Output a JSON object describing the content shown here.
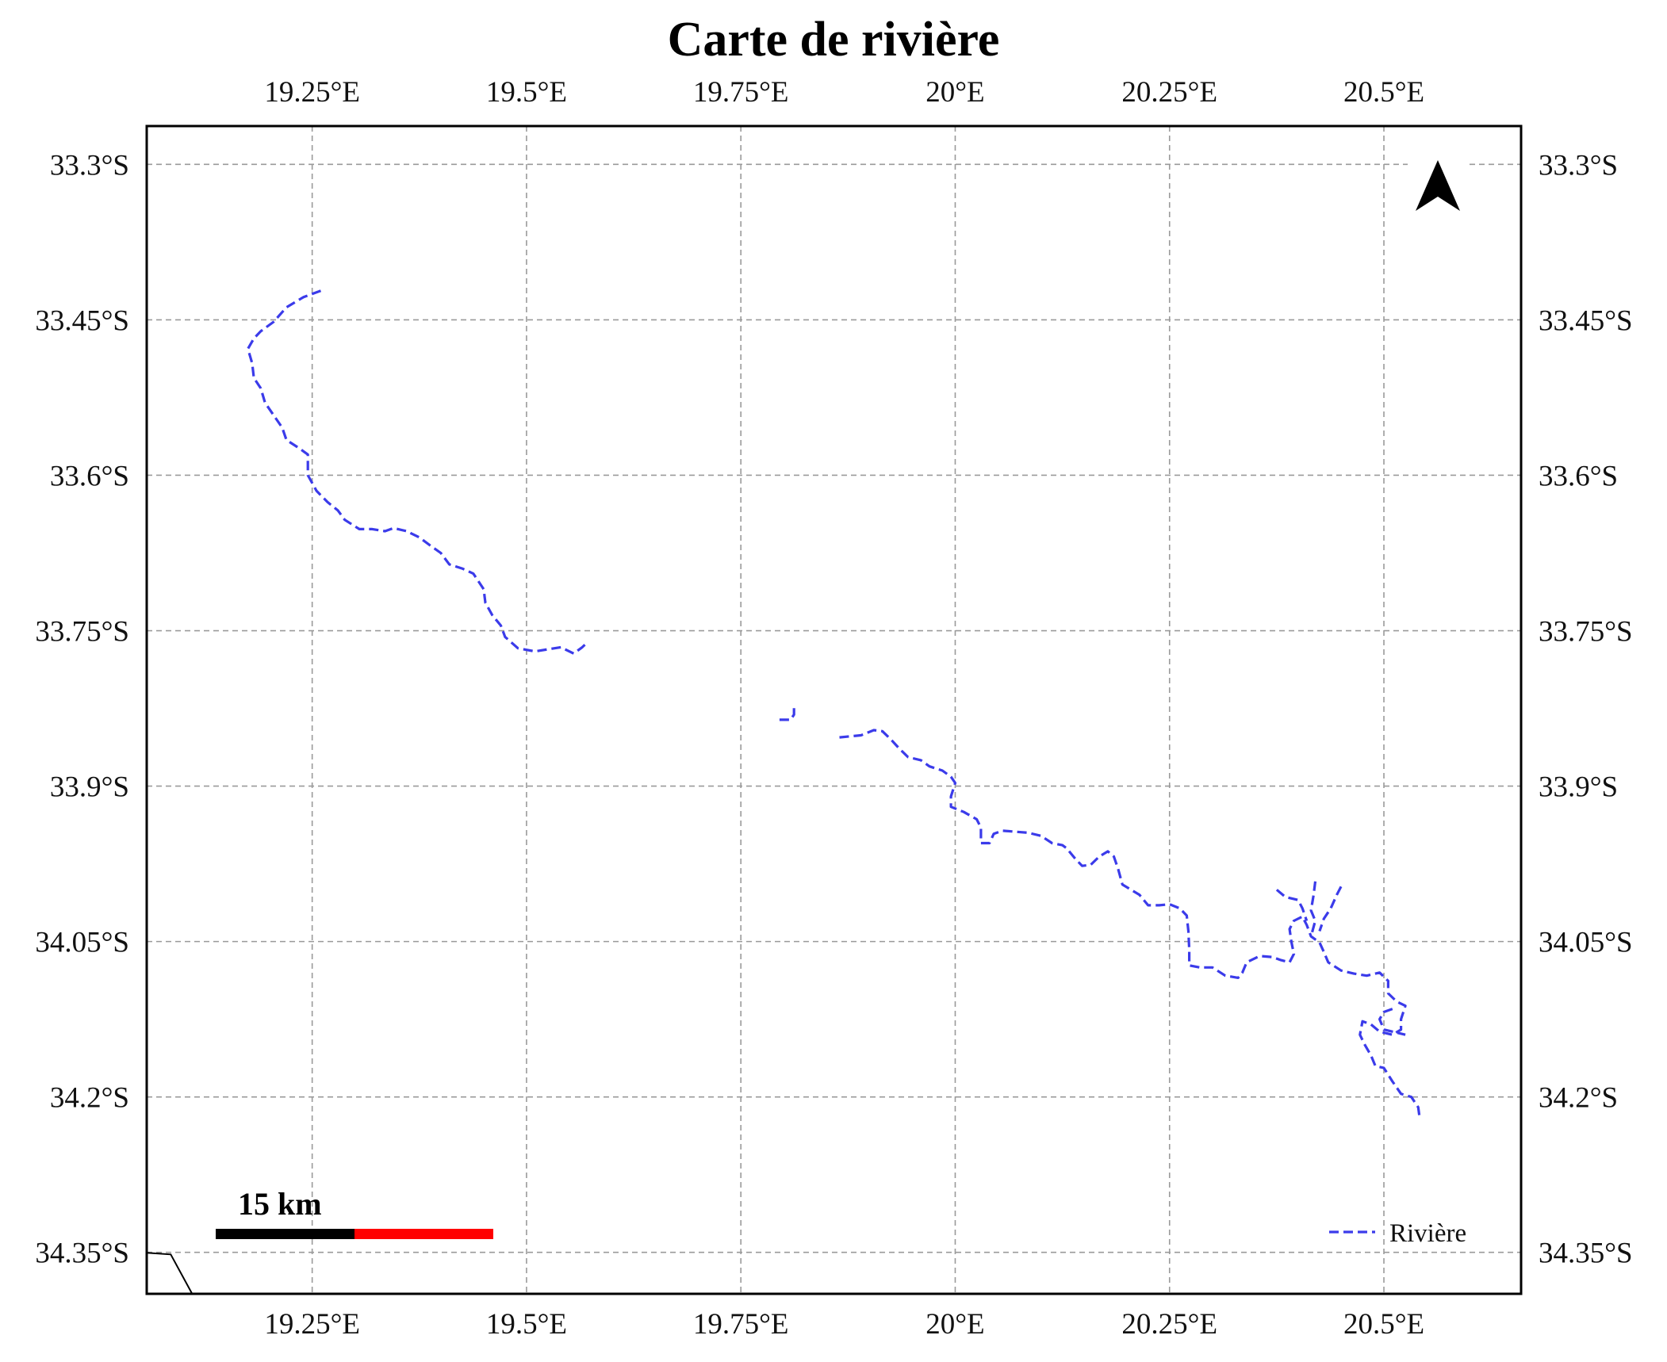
{
  "map": {
    "title": "Carte de rivière",
    "x_ticks": [
      "19.25°E",
      "19.5°E",
      "19.75°E",
      "20°E",
      "20.25°E",
      "20.5°E"
    ],
    "x_tick_values": [
      19.25,
      19.5,
      19.75,
      20.0,
      20.25,
      20.5
    ],
    "y_ticks": [
      "33.3°S",
      "33.45°S",
      "33.6°S",
      "33.75°S",
      "33.9°S",
      "34.05°S",
      "34.2°S",
      "34.35°S"
    ],
    "y_tick_values": [
      -33.3,
      -33.45,
      -33.6,
      -33.75,
      -33.9,
      -34.05,
      -34.2,
      -34.35
    ],
    "extent": {
      "lon": [
        19.057,
        20.66
      ],
      "lat": [
        -34.39,
        -33.263
      ]
    },
    "scale_bar": {
      "label": "15 km",
      "colors": [
        "#000000",
        "#ff0000"
      ]
    },
    "legend": {
      "entries": [
        {
          "label": "Rivière",
          "color": "#3b3bea",
          "style": "dashed"
        }
      ],
      "placement": "lower-right"
    },
    "north_arrow": {
      "icon": "north-arrow-icon"
    },
    "rivers": [
      {
        "name": "upper-segment",
        "coords": [
          [
            19.26,
            -33.422
          ],
          [
            19.24,
            -33.428
          ],
          [
            19.22,
            -33.438
          ],
          [
            19.205,
            -33.452
          ],
          [
            19.19,
            -33.461
          ],
          [
            19.182,
            -33.468
          ],
          [
            19.175,
            -33.478
          ],
          [
            19.18,
            -33.492
          ],
          [
            19.182,
            -33.506
          ],
          [
            19.19,
            -33.516
          ],
          [
            19.195,
            -33.53
          ],
          [
            19.205,
            -33.542
          ],
          [
            19.215,
            -33.554
          ],
          [
            19.22,
            -33.566
          ],
          [
            19.235,
            -33.574
          ],
          [
            19.245,
            -33.58
          ],
          [
            19.245,
            -33.6
          ],
          [
            19.255,
            -33.615
          ],
          [
            19.268,
            -33.626
          ],
          [
            19.28,
            -33.634
          ],
          [
            19.288,
            -33.643
          ],
          [
            19.305,
            -33.652
          ],
          [
            19.32,
            -33.652
          ],
          [
            19.335,
            -33.654
          ],
          [
            19.345,
            -33.651
          ],
          [
            19.36,
            -33.654
          ],
          [
            19.375,
            -33.66
          ],
          [
            19.388,
            -33.668
          ],
          [
            19.4,
            -33.675
          ],
          [
            19.41,
            -33.686
          ],
          [
            19.425,
            -33.69
          ],
          [
            19.438,
            -33.695
          ],
          [
            19.45,
            -33.71
          ],
          [
            19.452,
            -33.723
          ],
          [
            19.46,
            -33.735
          ],
          [
            19.47,
            -33.745
          ],
          [
            19.475,
            -33.756
          ],
          [
            19.49,
            -33.767
          ],
          [
            19.51,
            -33.77
          ],
          [
            19.525,
            -33.768
          ],
          [
            19.54,
            -33.766
          ],
          [
            19.555,
            -33.772
          ],
          [
            19.565,
            -33.766
          ],
          [
            19.57,
            -33.762
          ]
        ]
      },
      {
        "name": "short-fragment",
        "coords": [
          [
            19.795,
            -33.836
          ],
          [
            19.808,
            -33.836
          ],
          [
            19.812,
            -33.831
          ],
          [
            19.812,
            -33.824
          ]
        ]
      },
      {
        "name": "lower-main",
        "coords": [
          [
            19.865,
            -33.853
          ],
          [
            19.89,
            -33.851
          ],
          [
            19.905,
            -33.846
          ],
          [
            19.915,
            -33.847
          ],
          [
            19.925,
            -33.855
          ],
          [
            19.935,
            -33.864
          ],
          [
            19.945,
            -33.872
          ],
          [
            19.96,
            -33.875
          ],
          [
            19.97,
            -33.881
          ],
          [
            19.985,
            -33.885
          ],
          [
            19.995,
            -33.891
          ],
          [
            20.0,
            -33.897
          ],
          [
            19.995,
            -33.91
          ],
          [
            19.995,
            -33.92
          ],
          [
            20.01,
            -33.925
          ],
          [
            20.025,
            -33.932
          ],
          [
            20.03,
            -33.94
          ],
          [
            20.03,
            -33.955
          ],
          [
            20.04,
            -33.955
          ],
          [
            20.045,
            -33.946
          ],
          [
            20.055,
            -33.943
          ],
          [
            20.07,
            -33.944
          ],
          [
            20.085,
            -33.945
          ],
          [
            20.1,
            -33.948
          ],
          [
            20.113,
            -33.955
          ],
          [
            20.125,
            -33.957
          ],
          [
            20.13,
            -33.96
          ],
          [
            20.14,
            -33.97
          ],
          [
            20.148,
            -33.977
          ],
          [
            20.158,
            -33.976
          ],
          [
            20.168,
            -33.968
          ],
          [
            20.178,
            -33.963
          ],
          [
            20.185,
            -33.968
          ],
          [
            20.19,
            -33.98
          ],
          [
            20.195,
            -33.995
          ],
          [
            20.205,
            -34.0
          ],
          [
            20.215,
            -34.005
          ],
          [
            20.225,
            -34.015
          ],
          [
            20.238,
            -34.015
          ],
          [
            20.25,
            -34.014
          ],
          [
            20.262,
            -34.018
          ],
          [
            20.27,
            -34.025
          ],
          [
            20.272,
            -34.04
          ],
          [
            20.273,
            -34.058
          ],
          [
            20.273,
            -34.073
          ],
          [
            20.285,
            -34.075
          ],
          [
            20.3,
            -34.075
          ],
          [
            20.315,
            -34.083
          ],
          [
            20.33,
            -34.085
          ],
          [
            20.335,
            -34.08
          ],
          [
            20.34,
            -34.07
          ],
          [
            20.355,
            -34.064
          ],
          [
            20.37,
            -34.065
          ],
          [
            20.38,
            -34.068
          ],
          [
            20.39,
            -34.07
          ],
          [
            20.395,
            -34.062
          ],
          [
            20.392,
            -34.05
          ],
          [
            20.39,
            -34.038
          ],
          [
            20.395,
            -34.03
          ],
          [
            20.405,
            -34.026
          ],
          [
            20.41,
            -34.034
          ],
          [
            20.415,
            -34.045
          ],
          [
            20.425,
            -34.051
          ],
          [
            20.43,
            -34.06
          ],
          [
            20.435,
            -34.07
          ],
          [
            20.45,
            -34.078
          ],
          [
            20.465,
            -34.081
          ],
          [
            20.48,
            -34.083
          ],
          [
            20.495,
            -34.08
          ],
          [
            20.505,
            -34.088
          ],
          [
            20.505,
            -34.1
          ],
          [
            20.515,
            -34.108
          ],
          [
            20.525,
            -34.112
          ],
          [
            20.52,
            -34.125
          ],
          [
            20.52,
            -34.135
          ],
          [
            20.51,
            -34.14
          ],
          [
            20.495,
            -34.137
          ],
          [
            20.485,
            -34.13
          ],
          [
            20.475,
            -34.127
          ],
          [
            20.472,
            -34.14
          ],
          [
            20.478,
            -34.15
          ],
          [
            20.485,
            -34.16
          ],
          [
            20.49,
            -34.17
          ],
          [
            20.5,
            -34.172
          ],
          [
            20.51,
            -34.185
          ],
          [
            20.52,
            -34.197
          ],
          [
            20.532,
            -34.2
          ],
          [
            20.54,
            -34.21
          ],
          [
            20.542,
            -34.222
          ]
        ]
      },
      {
        "name": "tributary-a",
        "coords": [
          [
            20.375,
            -34.0
          ],
          [
            20.385,
            -34.007
          ],
          [
            20.4,
            -34.01
          ],
          [
            20.405,
            -34.018
          ],
          [
            20.41,
            -34.03
          ]
        ]
      },
      {
        "name": "tributary-b",
        "coords": [
          [
            20.42,
            -33.992
          ],
          [
            20.418,
            -34.005
          ],
          [
            20.415,
            -34.02
          ],
          [
            20.42,
            -34.03
          ],
          [
            20.415,
            -34.045
          ]
        ]
      },
      {
        "name": "tributary-c",
        "coords": [
          [
            20.45,
            -33.997
          ],
          [
            20.445,
            -34.005
          ],
          [
            20.438,
            -34.018
          ],
          [
            20.43,
            -34.028
          ],
          [
            20.425,
            -34.04
          ]
        ]
      },
      {
        "name": "loop-branch",
        "coords": [
          [
            20.51,
            -34.115
          ],
          [
            20.5,
            -34.118
          ],
          [
            20.495,
            -34.125
          ],
          [
            20.5,
            -34.135
          ],
          [
            20.515,
            -34.138
          ],
          [
            20.525,
            -34.14
          ]
        ]
      }
    ],
    "coastline": [
      [
        19.05,
        -34.35
      ],
      [
        19.085,
        -34.352
      ],
      [
        19.11,
        -34.39
      ]
    ]
  }
}
